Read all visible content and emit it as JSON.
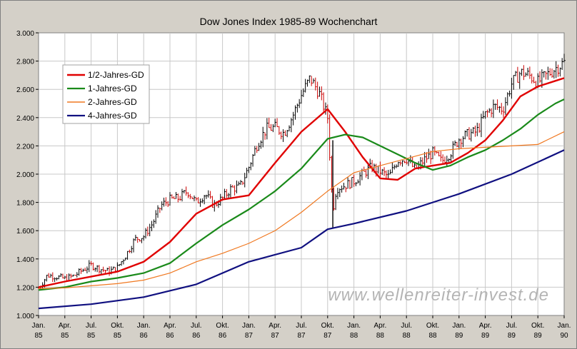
{
  "chart_data": {
    "type": "line",
    "title": "Dow Jones Index 1985-89 Wochenchart",
    "watermark": "www.wellenreiter-invest.de",
    "ylim": [
      1000,
      3000
    ],
    "y_ticks": [
      {
        "value": 1000,
        "label": "1.000"
      },
      {
        "value": 1200,
        "label": "1.200"
      },
      {
        "value": 1400,
        "label": "1.400"
      },
      {
        "value": 1600,
        "label": "1.600"
      },
      {
        "value": 1800,
        "label": "1.800"
      },
      {
        "value": 2000,
        "label": "2.000"
      },
      {
        "value": 2200,
        "label": "2.200"
      },
      {
        "value": 2400,
        "label": "2.400"
      },
      {
        "value": 2600,
        "label": "2.600"
      },
      {
        "value": 2800,
        "label": "2.800"
      },
      {
        "value": 3000,
        "label": "3.000"
      }
    ],
    "x_range": [
      "1985-01",
      "1990-01"
    ],
    "x_ticks": [
      {
        "month": "Jan.",
        "year": "85",
        "date": "1985-01"
      },
      {
        "month": "Apr.",
        "year": "85",
        "date": "1985-04"
      },
      {
        "month": "Jul.",
        "year": "85",
        "date": "1985-07"
      },
      {
        "month": "Okt.",
        "year": "85",
        "date": "1985-10"
      },
      {
        "month": "Jan.",
        "year": "86",
        "date": "1986-01"
      },
      {
        "month": "Apr.",
        "year": "86",
        "date": "1986-04"
      },
      {
        "month": "Jul.",
        "year": "86",
        "date": "1986-07"
      },
      {
        "month": "Okt.",
        "year": "86",
        "date": "1986-10"
      },
      {
        "month": "Jan.",
        "year": "87",
        "date": "1987-01"
      },
      {
        "month": "Apr.",
        "year": "87",
        "date": "1987-04"
      },
      {
        "month": "Jul.",
        "year": "87",
        "date": "1987-07"
      },
      {
        "month": "Okt.",
        "year": "87",
        "date": "1987-10"
      },
      {
        "month": "Jan.",
        "year": "88",
        "date": "1988-01"
      },
      {
        "month": "Apr.",
        "year": "88",
        "date": "1988-04"
      },
      {
        "month": "Jul.",
        "year": "88",
        "date": "1988-07"
      },
      {
        "month": "Okt.",
        "year": "88",
        "date": "1988-10"
      },
      {
        "month": "Jan.",
        "year": "89",
        "date": "1989-01"
      },
      {
        "month": "Apr.",
        "year": "89",
        "date": "1989-04"
      },
      {
        "month": "Jul.",
        "year": "89",
        "date": "1989-07"
      },
      {
        "month": "Okt.",
        "year": "89",
        "date": "1989-10"
      },
      {
        "month": "Jan.",
        "year": "90",
        "date": "1990-01"
      }
    ],
    "grid": true,
    "legend_position": "top-left",
    "price": {
      "color": "#000000",
      "up_color": "#000000",
      "down_color": "#cc0000",
      "points": [
        [
          "1985-01",
          1190
        ],
        [
          "1985-02",
          1285
        ],
        [
          "1985-03",
          1275
        ],
        [
          "1985-04",
          1260
        ],
        [
          "1985-05",
          1280
        ],
        [
          "1985-06",
          1320
        ],
        [
          "1985-07",
          1355
        ],
        [
          "1985-08",
          1330
        ],
        [
          "1985-09",
          1310
        ],
        [
          "1985-10",
          1340
        ],
        [
          "1985-11",
          1430
        ],
        [
          "1985-12",
          1540
        ],
        [
          "1986-01",
          1560
        ],
        [
          "1986-02",
          1650
        ],
        [
          "1986-03",
          1780
        ],
        [
          "1986-04",
          1820
        ],
        [
          "1986-05",
          1830
        ],
        [
          "1986-06",
          1880
        ],
        [
          "1986-07",
          1800
        ],
        [
          "1986-08",
          1860
        ],
        [
          "1986-09",
          1780
        ],
        [
          "1986-10",
          1830
        ],
        [
          "1986-11",
          1900
        ],
        [
          "1986-12",
          1910
        ],
        [
          "1987-01",
          2050
        ],
        [
          "1987-02",
          2220
        ],
        [
          "1987-03",
          2320
        ],
        [
          "1987-04",
          2330
        ],
        [
          "1987-05",
          2290
        ],
        [
          "1987-06",
          2410
        ],
        [
          "1987-07",
          2560
        ],
        [
          "1987-08",
          2680
        ],
        [
          "1987-09",
          2580
        ],
        [
          "1987-10",
          2400
        ],
        [
          "1987-10-19",
          1740
        ],
        [
          "1987-11",
          1900
        ],
        [
          "1987-12",
          1920
        ],
        [
          "1988-01",
          1950
        ],
        [
          "1988-02",
          2000
        ],
        [
          "1988-03",
          2050
        ],
        [
          "1988-04",
          2020
        ],
        [
          "1988-05",
          1980
        ],
        [
          "1988-06",
          2100
        ],
        [
          "1988-07",
          2110
        ],
        [
          "1988-08",
          2030
        ],
        [
          "1988-09",
          2100
        ],
        [
          "1988-10",
          2150
        ],
        [
          "1988-11",
          2090
        ],
        [
          "1988-12",
          2150
        ],
        [
          "1989-01",
          2250
        ],
        [
          "1989-02",
          2280
        ],
        [
          "1989-03",
          2300
        ],
        [
          "1989-04",
          2420
        ],
        [
          "1989-05",
          2480
        ],
        [
          "1989-06",
          2460
        ],
        [
          "1989-07",
          2640
        ],
        [
          "1989-08",
          2720
        ],
        [
          "1989-09",
          2700
        ],
        [
          "1989-10",
          2650
        ],
        [
          "1989-11",
          2700
        ],
        [
          "1989-12",
          2750
        ],
        [
          "1990-01",
          2790
        ]
      ]
    },
    "series": [
      {
        "name": "1/2-Jahres-GD",
        "color": "#e00000",
        "width": 2.4,
        "points": [
          [
            "1985-01",
            1200
          ],
          [
            "1985-04",
            1240
          ],
          [
            "1985-07",
            1275
          ],
          [
            "1985-10",
            1310
          ],
          [
            "1986-01",
            1380
          ],
          [
            "1986-04",
            1520
          ],
          [
            "1986-07",
            1720
          ],
          [
            "1986-10",
            1820
          ],
          [
            "1987-01",
            1850
          ],
          [
            "1987-04",
            2080
          ],
          [
            "1987-07",
            2300
          ],
          [
            "1987-10",
            2460
          ],
          [
            "1987-12",
            2300
          ],
          [
            "1988-02",
            2120
          ],
          [
            "1988-04",
            1970
          ],
          [
            "1988-06",
            1960
          ],
          [
            "1988-08",
            2040
          ],
          [
            "1988-10",
            2060
          ],
          [
            "1988-12",
            2080
          ],
          [
            "1989-02",
            2150
          ],
          [
            "1989-04",
            2240
          ],
          [
            "1989-06",
            2380
          ],
          [
            "1989-08",
            2550
          ],
          [
            "1989-10",
            2620
          ],
          [
            "1989-12",
            2660
          ],
          [
            "1990-01",
            2680
          ]
        ]
      },
      {
        "name": "1-Jahres-GD",
        "color": "#1a8a1a",
        "width": 2.2,
        "points": [
          [
            "1985-01",
            1180
          ],
          [
            "1985-04",
            1200
          ],
          [
            "1985-07",
            1240
          ],
          [
            "1985-10",
            1265
          ],
          [
            "1986-01",
            1300
          ],
          [
            "1986-04",
            1370
          ],
          [
            "1986-07",
            1510
          ],
          [
            "1986-10",
            1640
          ],
          [
            "1987-01",
            1750
          ],
          [
            "1987-04",
            1880
          ],
          [
            "1987-07",
            2040
          ],
          [
            "1987-10",
            2250
          ],
          [
            "1987-12",
            2280
          ],
          [
            "1988-02",
            2260
          ],
          [
            "1988-04",
            2200
          ],
          [
            "1988-06",
            2140
          ],
          [
            "1988-08",
            2080
          ],
          [
            "1988-10",
            2030
          ],
          [
            "1988-12",
            2060
          ],
          [
            "1989-02",
            2120
          ],
          [
            "1989-04",
            2170
          ],
          [
            "1989-06",
            2240
          ],
          [
            "1989-08",
            2320
          ],
          [
            "1989-10",
            2420
          ],
          [
            "1989-12",
            2500
          ],
          [
            "1990-01",
            2530
          ]
        ]
      },
      {
        "name": "2-Jahres-GD",
        "color": "#f07820",
        "width": 1.2,
        "points": [
          [
            "1985-01",
            1190
          ],
          [
            "1985-04",
            1195
          ],
          [
            "1985-07",
            1210
          ],
          [
            "1985-10",
            1225
          ],
          [
            "1986-01",
            1250
          ],
          [
            "1986-04",
            1300
          ],
          [
            "1986-07",
            1380
          ],
          [
            "1986-10",
            1440
          ],
          [
            "1987-01",
            1510
          ],
          [
            "1987-04",
            1600
          ],
          [
            "1987-07",
            1730
          ],
          [
            "1987-10",
            1880
          ],
          [
            "1988-01",
            2010
          ],
          [
            "1988-04",
            2060
          ],
          [
            "1988-07",
            2110
          ],
          [
            "1988-10",
            2160
          ],
          [
            "1989-01",
            2180
          ],
          [
            "1989-04",
            2190
          ],
          [
            "1989-07",
            2200
          ],
          [
            "1989-10",
            2210
          ],
          [
            "1990-01",
            2300
          ]
        ]
      },
      {
        "name": "4-Jahres-GD",
        "color": "#101080",
        "width": 2.2,
        "points": [
          [
            "1985-01",
            1050
          ],
          [
            "1985-07",
            1080
          ],
          [
            "1986-01",
            1130
          ],
          [
            "1986-07",
            1220
          ],
          [
            "1987-01",
            1380
          ],
          [
            "1987-07",
            1480
          ],
          [
            "1987-10",
            1610
          ],
          [
            "1988-01",
            1650
          ],
          [
            "1988-07",
            1740
          ],
          [
            "1989-01",
            1860
          ],
          [
            "1989-07",
            2000
          ],
          [
            "1990-01",
            2170
          ]
        ]
      }
    ]
  }
}
